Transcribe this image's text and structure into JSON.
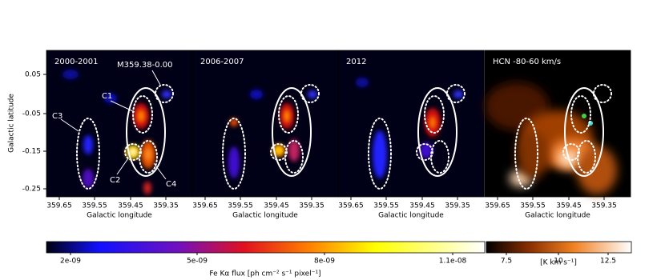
{
  "figure": {
    "ylabel": "Galactic latitude",
    "yticks": [
      "0.05",
      "-0.05",
      "-0.15",
      "-0.25"
    ],
    "panels": [
      {
        "title": "2000-2001",
        "xlabel": "Galactic longitude",
        "xticks": [
          "359.65",
          "359.55",
          "359.45",
          "359.35"
        ]
      },
      {
        "title": "2006-2007",
        "xlabel": "Galactic longitude",
        "xticks": [
          "359.65",
          "359.55",
          "359.45",
          "359.35"
        ]
      },
      {
        "title": "2012",
        "xlabel": "Galactic longitude",
        "xticks": [
          "359.65",
          "359.55",
          "359.45",
          "359.35"
        ]
      },
      {
        "title": "HCN -80-60 km/s",
        "xlabel": "Galactic longitude",
        "xticks": [
          "359.65",
          "359.55",
          "359.45",
          "359.35"
        ]
      }
    ],
    "annotations": [
      "M359.38-0.00",
      "C1",
      "C3",
      "C2",
      "C4"
    ],
    "colorbars": [
      {
        "label": "Fe Kα flux [ph cm⁻² s⁻¹ pixel⁻¹]",
        "ticks": [
          "2e-09",
          "5e-09",
          "8e-09",
          "1.1e-08"
        ]
      },
      {
        "label": "[K km s⁻¹]",
        "ticks": [
          "7.5",
          "10",
          "12.5"
        ]
      }
    ]
  }
}
